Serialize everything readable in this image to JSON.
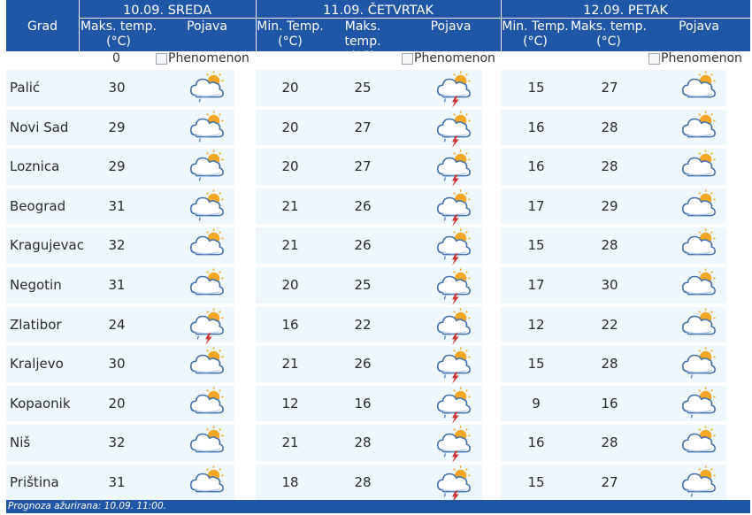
{
  "header": {
    "grad": "Grad",
    "days": [
      {
        "title": "10.09. SREDA",
        "cols": {
          "max": "Maks. temp.",
          "unit_max": "(°C)",
          "pojava": "Pojava"
        }
      },
      {
        "title": "11.09. ČETVRTAK",
        "cols": {
          "min": "Min. Temp.",
          "unit_min": "(°C)",
          "max": "Maks. temp.",
          "unit_max": "(°C)",
          "pojava": "Pojava"
        }
      },
      {
        "title": "12.09. PETAK",
        "cols": {
          "min": "Min. Temp.",
          "unit_min": "(°C)",
          "max": "Maks. temp.",
          "unit_max": "(°C)",
          "pojava": "Pojava"
        }
      }
    ]
  },
  "zero_row": {
    "value": "0",
    "phenomenon_alt": "Phenomenon"
  },
  "rows": [
    {
      "city": "Palić",
      "d1_max": "30",
      "d1_icon": "partly-cloudy-rain-icon",
      "d2_min": "20",
      "d2_max": "25",
      "d2_icon": "thunderstorm-icon",
      "d3_min": "15",
      "d3_max": "27",
      "d3_icon": "partly-cloudy-icon"
    },
    {
      "city": "Novi Sad",
      "d1_max": "29",
      "d1_icon": "partly-cloudy-rain-icon",
      "d2_min": "20",
      "d2_max": "27",
      "d2_icon": "thunderstorm-icon",
      "d3_min": "16",
      "d3_max": "28",
      "d3_icon": "partly-cloudy-icon"
    },
    {
      "city": "Loznica",
      "d1_max": "29",
      "d1_icon": "partly-cloudy-rain-icon",
      "d2_min": "20",
      "d2_max": "27",
      "d2_icon": "thunderstorm-icon",
      "d3_min": "16",
      "d3_max": "28",
      "d3_icon": "partly-cloudy-icon"
    },
    {
      "city": "Beograd",
      "d1_max": "31",
      "d1_icon": "partly-cloudy-rain-icon",
      "d2_min": "21",
      "d2_max": "26",
      "d2_icon": "thunderstorm-icon",
      "d3_min": "17",
      "d3_max": "29",
      "d3_icon": "partly-cloudy-icon"
    },
    {
      "city": "Kragujevac",
      "d1_max": "32",
      "d1_icon": "partly-cloudy-icon",
      "d2_min": "21",
      "d2_max": "26",
      "d2_icon": "thunderstorm-icon",
      "d3_min": "15",
      "d3_max": "28",
      "d3_icon": "partly-cloudy-icon"
    },
    {
      "city": "Negotin",
      "d1_max": "31",
      "d1_icon": "partly-cloudy-icon",
      "d2_min": "20",
      "d2_max": "25",
      "d2_icon": "thunderstorm-icon",
      "d3_min": "17",
      "d3_max": "30",
      "d3_icon": "partly-cloudy-icon"
    },
    {
      "city": "Zlatibor",
      "d1_max": "24",
      "d1_icon": "thunderstorm-icon",
      "d2_min": "16",
      "d2_max": "22",
      "d2_icon": "thunderstorm-icon",
      "d3_min": "12",
      "d3_max": "22",
      "d3_icon": "partly-cloudy-icon"
    },
    {
      "city": "Kraljevo",
      "d1_max": "30",
      "d1_icon": "partly-cloudy-icon",
      "d2_min": "21",
      "d2_max": "26",
      "d2_icon": "thunderstorm-icon",
      "d3_min": "15",
      "d3_max": "28",
      "d3_icon": "partly-cloudy-rain-icon"
    },
    {
      "city": "Kopaonik",
      "d1_max": "20",
      "d1_icon": "partly-cloudy-icon",
      "d2_min": "12",
      "d2_max": "16",
      "d2_icon": "thunderstorm-icon",
      "d3_min": "9",
      "d3_max": "16",
      "d3_icon": "partly-cloudy-rain-icon"
    },
    {
      "city": "Niš",
      "d1_max": "32",
      "d1_icon": "partly-cloudy-icon",
      "d2_min": "21",
      "d2_max": "28",
      "d2_icon": "thunderstorm-icon",
      "d3_min": "16",
      "d3_max": "28",
      "d3_icon": "partly-cloudy-icon"
    },
    {
      "city": "Priština",
      "d1_max": "31",
      "d1_icon": "partly-cloudy-icon",
      "d2_min": "18",
      "d2_max": "28",
      "d2_icon": "thunderstorm-icon",
      "d3_min": "15",
      "d3_max": "27",
      "d3_icon": "partly-cloudy-rain-icon"
    }
  ],
  "footer": {
    "text": "Prognoza ažurirana:  10.09. 11:00."
  },
  "colors": {
    "header_bg": "#1f56a6",
    "row_band": "#eef7fb",
    "sun": "#f5a623",
    "cloud_stroke": "#3f6fae",
    "lightning": "#d0312d"
  }
}
